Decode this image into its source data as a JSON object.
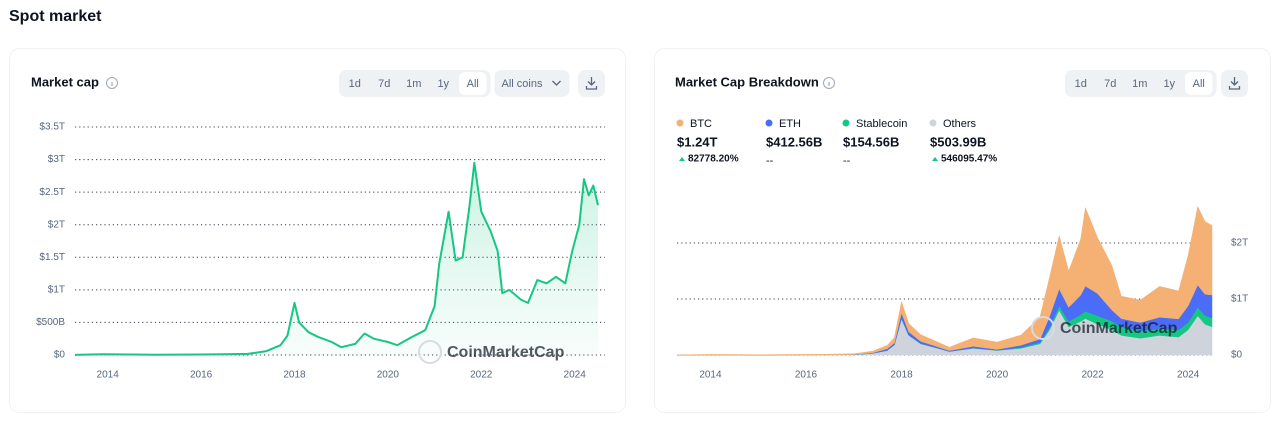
{
  "page_title": "Spot market",
  "watermark": "CoinMarketCap",
  "chart_data": [
    {
      "type": "line",
      "title": "Market cap",
      "controls": [
        "1d",
        "7d",
        "1m",
        "1y",
        "All"
      ],
      "dropdown": "All coins",
      "x": [
        2013.3,
        2013.9,
        2014.5,
        2015,
        2016,
        2016.5,
        2017,
        2017.4,
        2017.7,
        2017.85,
        2018.0,
        2018.1,
        2018.3,
        2018.5,
        2018.8,
        2019.0,
        2019.3,
        2019.5,
        2019.7,
        2020.0,
        2020.2,
        2020.5,
        2020.8,
        2021.0,
        2021.1,
        2021.3,
        2021.45,
        2021.6,
        2021.75,
        2021.85,
        2022.0,
        2022.2,
        2022.35,
        2022.45,
        2022.6,
        2022.85,
        2023.0,
        2023.2,
        2023.4,
        2023.6,
        2023.8,
        2023.95,
        2024.1,
        2024.2,
        2024.3,
        2024.4,
        2024.5
      ],
      "values": [
        1.5,
        10,
        8,
        4,
        7,
        10,
        17,
        60,
        150,
        300,
        800,
        500,
        350,
        280,
        200,
        120,
        170,
        330,
        250,
        200,
        150,
        270,
        380,
        750,
        1400,
        2200,
        1450,
        1500,
        2300,
        2950,
        2200,
        1900,
        1600,
        950,
        1000,
        850,
        800,
        1150,
        1100,
        1200,
        1100,
        1600,
        2000,
        2700,
        2450,
        2600,
        2300
      ],
      "color": "#16c784",
      "xlim": [
        2013.3,
        2024.65
      ],
      "xticks": [
        2014,
        2016,
        2018,
        2020,
        2022,
        2024
      ],
      "ylim": [
        0,
        3500
      ],
      "yticks": [
        {
          "value": 0,
          "label": "$0"
        },
        {
          "value": 500,
          "label": "$500B"
        },
        {
          "value": 1000,
          "label": "$1T"
        },
        {
          "value": 1500,
          "label": "$1.5T"
        },
        {
          "value": 2000,
          "label": "$2T"
        },
        {
          "value": 2500,
          "label": "$2.5T"
        },
        {
          "value": 3000,
          "label": "$3T"
        },
        {
          "value": 3500,
          "label": "$3.5T"
        }
      ],
      "grid": true
    },
    {
      "type": "stacked_area",
      "title": "Market Cap Breakdown",
      "controls": [
        "1d",
        "7d",
        "1m",
        "1y",
        "All"
      ],
      "x": [
        2013.3,
        2014,
        2015,
        2016,
        2016.5,
        2017,
        2017.4,
        2017.7,
        2017.85,
        2018.0,
        2018.15,
        2018.4,
        2018.8,
        2019.0,
        2019.5,
        2020.0,
        2020.5,
        2020.9,
        2021.1,
        2021.3,
        2021.5,
        2021.75,
        2021.85,
        2022.1,
        2022.4,
        2022.6,
        2023.0,
        2023.4,
        2023.8,
        2024.0,
        2024.2,
        2024.35,
        2024.5
      ],
      "series": [
        {
          "name": "Others",
          "color": "#cfd4dc",
          "value_label": "$503.99B",
          "change": "546095.47%",
          "change_direction": "up",
          "values": [
            1,
            3,
            2,
            3,
            4,
            6,
            30,
            80,
            180,
            650,
            350,
            200,
            110,
            60,
            120,
            80,
            120,
            200,
            450,
            800,
            500,
            600,
            650,
            550,
            450,
            350,
            300,
            350,
            320,
            450,
            700,
            550,
            504
          ]
        },
        {
          "name": "Stablecoin",
          "color": "#16c784",
          "value_label": "$154.56B",
          "change": "--",
          "values": [
            0,
            0,
            0,
            0,
            0,
            0,
            1,
            2,
            3,
            4,
            4,
            5,
            5,
            4,
            5,
            5,
            15,
            25,
            40,
            80,
            100,
            120,
            130,
            150,
            155,
            150,
            130,
            125,
            125,
            130,
            150,
            155,
            155
          ]
        },
        {
          "name": "ETH",
          "color": "#4a6cf7",
          "value_label": "$412.56B",
          "change": "--",
          "values": [
            0,
            0,
            0,
            1,
            1,
            1,
            8,
            30,
            30,
            100,
            60,
            40,
            20,
            15,
            30,
            15,
            40,
            60,
            200,
            300,
            250,
            350,
            450,
            400,
            200,
            150,
            150,
            200,
            200,
            300,
            400,
            380,
            413
          ]
        },
        {
          "name": "BTC",
          "color": "#f5b073",
          "value_label": "$1.24T",
          "change": "82778.20%",
          "change_direction": "up",
          "values": [
            1,
            8,
            4,
            7,
            9,
            14,
            30,
            60,
            100,
            200,
            150,
            120,
            80,
            60,
            150,
            130,
            180,
            400,
            700,
            950,
            650,
            1000,
            1400,
            1000,
            800,
            400,
            400,
            550,
            500,
            900,
            1400,
            1300,
            1240
          ]
        }
      ],
      "legend_order": [
        "BTC",
        "ETH",
        "Stablecoin",
        "Others"
      ],
      "xlim": [
        2013.3,
        2024.52
      ],
      "xticks": [
        2014,
        2016,
        2018,
        2020,
        2022,
        2024
      ],
      "ylim": [
        0,
        3000
      ],
      "yticks": [
        {
          "value": 0,
          "label": "$0"
        },
        {
          "value": 1000,
          "label": "$1T"
        },
        {
          "value": 2000,
          "label": "$2T"
        }
      ],
      "grid": true
    }
  ]
}
